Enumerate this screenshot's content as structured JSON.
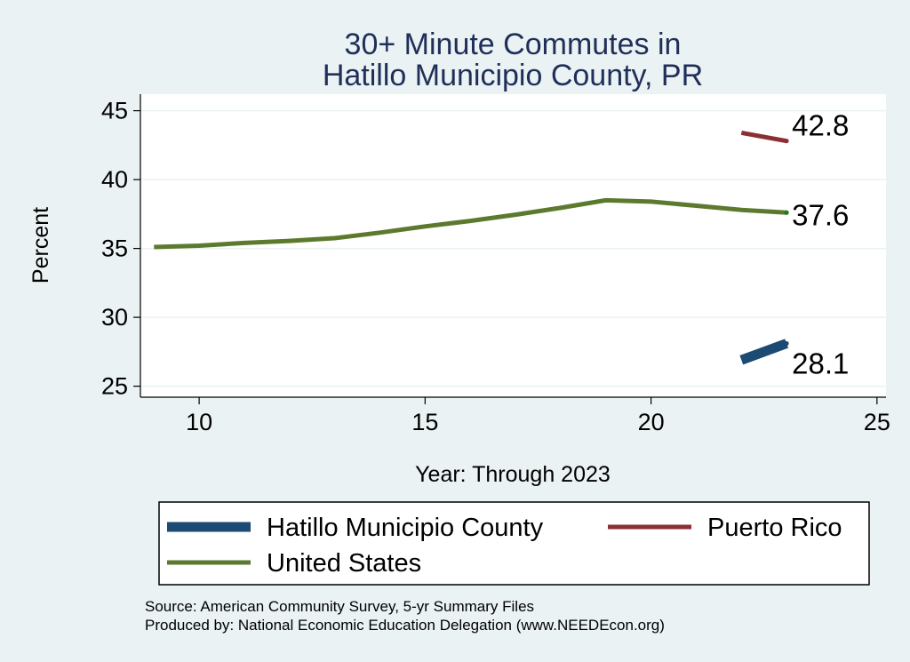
{
  "chart_data": {
    "type": "line",
    "title": [
      "30+ Minute Commutes in",
      "Hatillo Municipio County, PR"
    ],
    "xlabel": "Year: Through 2023",
    "ylabel": "Percent",
    "xlim": [
      8.7,
      25.2
    ],
    "ylim": [
      24.2,
      46.2
    ],
    "xticks": [
      10,
      15,
      20,
      25
    ],
    "yticks": [
      25,
      30,
      35,
      40,
      45
    ],
    "grid": true,
    "legend_position": "bottom",
    "series": [
      {
        "name": "Hatillo Municipio County",
        "color": "#1b4a73",
        "stroke": 11,
        "x": [
          22,
          23
        ],
        "y": [
          26.9,
          28.1
        ],
        "end_label": "28.1"
      },
      {
        "name": "Puerto Rico",
        "color": "#8b2f35",
        "stroke": 5,
        "x": [
          22,
          23
        ],
        "y": [
          43.4,
          42.8
        ],
        "end_label": "42.8"
      },
      {
        "name": "United States",
        "color": "#5c7a2e",
        "stroke": 5,
        "x": [
          9,
          10,
          11,
          12,
          13,
          14,
          15,
          16,
          17,
          18,
          19,
          20,
          21,
          22,
          23
        ],
        "y": [
          35.1,
          35.2,
          35.4,
          35.55,
          35.75,
          36.15,
          36.6,
          37.0,
          37.45,
          37.95,
          38.5,
          38.4,
          38.1,
          37.8,
          37.6
        ],
        "end_label": "37.6"
      }
    ]
  },
  "notes": [
    "Source: American Community Survey, 5-yr Summary Files",
    "Produced by: National Economic Education Delegation (www.NEEDEcon.org)"
  ]
}
